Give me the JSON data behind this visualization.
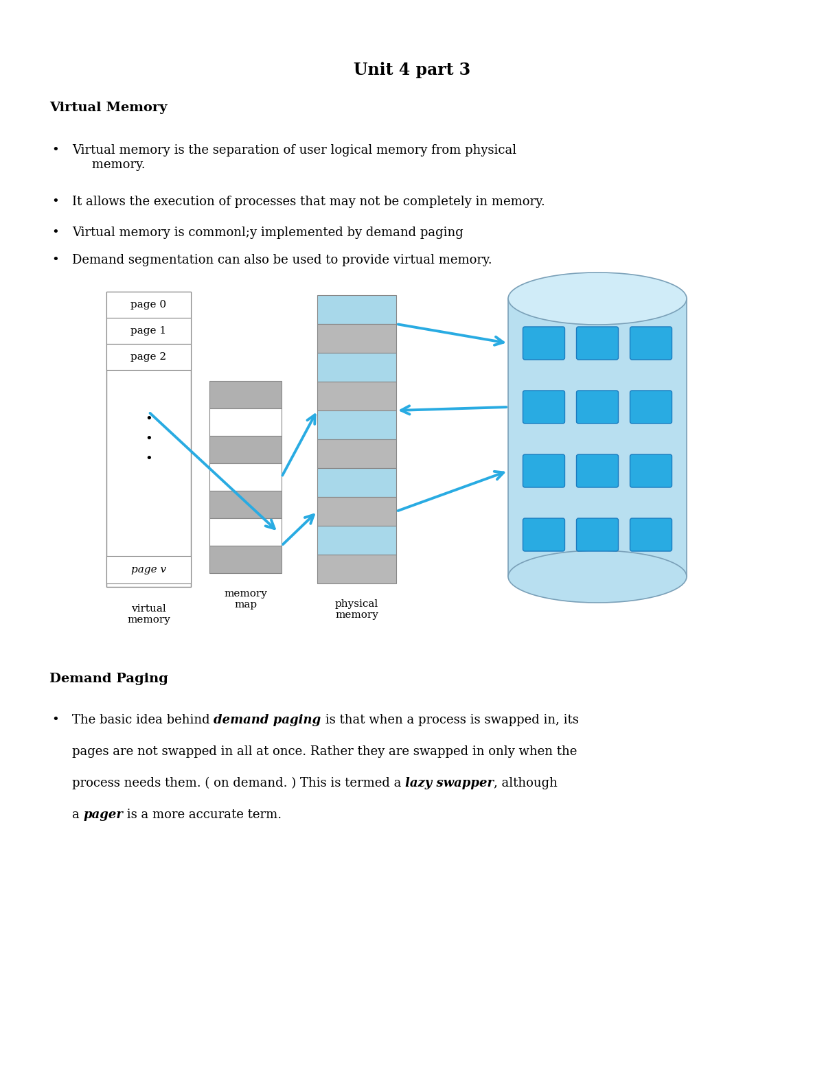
{
  "title": "Unit 4 part 3",
  "section1_heading": "Virtual Memory",
  "bullet1_1": "Virtual memory is the separation of user logical memory from physical\n     memory.",
  "bullet1_2": "It allows the execution of processes that may not be completely in memory.",
  "bullet1_3": "Virtual memory is commonl;y implemented by demand paging",
  "bullet1_4": "Demand segmentation can also be used to provide virtual memory.",
  "section2_heading": "Demand Paging",
  "dp_line1_a": "The basic idea behind ",
  "dp_line1_b": "demand paging",
  "dp_line1_c": " is that when a process is swapped in, its",
  "dp_line2": "pages are not swapped in all at once. Rather they are swapped in only when the",
  "dp_line3_a": "process needs them. ( on demand. ) This is termed a ",
  "dp_line3_b": "lazy swapper",
  "dp_line3_c": ", although",
  "dp_line4_a": "a ",
  "dp_line4_b": "pager",
  "dp_line4_c": " is a more accurate term.",
  "bg_color": "#ffffff",
  "text_color": "#000000",
  "arrow_color": "#29abe2",
  "vm_box_color": "#ffffff",
  "vm_box_border": "#888888",
  "mm_gray": "#b0b0b0",
  "mm_white": "#ffffff",
  "pm_blue": "#a8d8ea",
  "pm_gray": "#b8b8b8",
  "cyl_body": "#b8dff0",
  "cyl_top": "#d0ecf8",
  "cyl_border": "#7aa0b8",
  "tile_fill": "#29abe2",
  "tile_border": "#1a7bbf"
}
